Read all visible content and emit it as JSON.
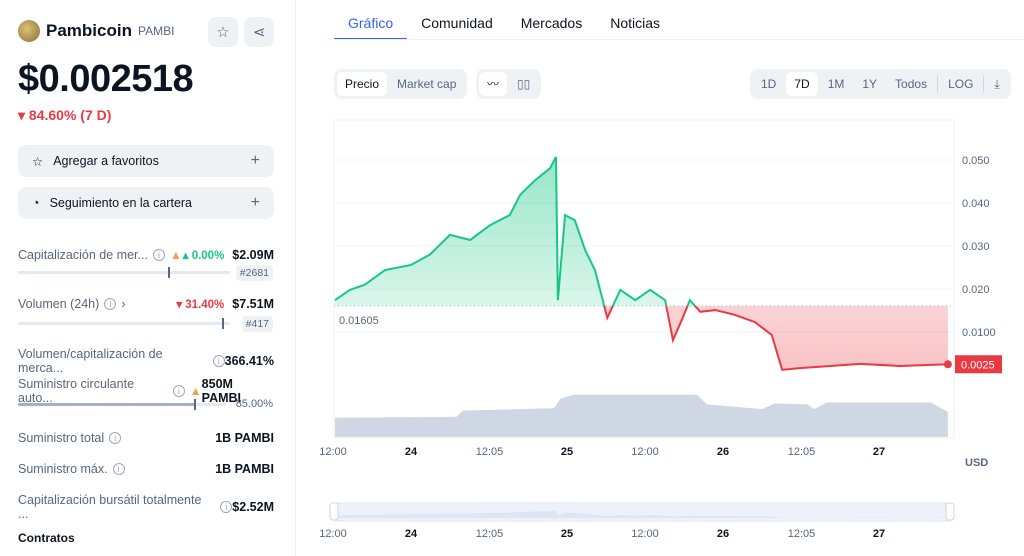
{
  "coin": {
    "name": "Pambicoin",
    "symbol": "PAMBI",
    "price": "$0.002518",
    "change": "84.60% (7 D)"
  },
  "actions": {
    "favorites": "Agregar a favoritos",
    "portfolio": "Seguimiento en la cartera"
  },
  "stats": {
    "market_cap": {
      "label": "Capitalización de mer...",
      "change": "0.00%",
      "value": "$2.09M",
      "rank": "#2681",
      "level": 0.75
    },
    "volume": {
      "label": "Volumen (24h)",
      "change": "31.40%",
      "value": "$7.51M",
      "rank": "#417",
      "level": 0.97
    },
    "vol_mcap": {
      "label": "Volumen/capitalización de merca...",
      "value": "366.41%"
    },
    "circ": {
      "label": "Suministro circulante auto...",
      "value": "850M PAMBI",
      "pct": "85.00%",
      "level": 0.85
    },
    "total": {
      "label": "Suministro total",
      "value": "1B PAMBI"
    },
    "max": {
      "label": "Suministro máx.",
      "value": "1B PAMBI"
    },
    "fdv": {
      "label": "Capitalización bursátil totalmente ...",
      "value": "$2.52M"
    },
    "contracts": "Contratos"
  },
  "tabs": [
    "Gráfico",
    "Comunidad",
    "Mercados",
    "Noticias"
  ],
  "toolbar": {
    "metric": [
      "Precio",
      "Market cap"
    ],
    "ranges": [
      "1D",
      "7D",
      "1M",
      "1Y",
      "Todos"
    ],
    "log": "LOG",
    "selected_range": "7D"
  },
  "colors": {
    "up": "#16c784",
    "down": "#ea3943",
    "accent": "#3861fb"
  },
  "chart_data": {
    "type": "line",
    "currency": "USD",
    "baseline": 0.01605,
    "baseline_label": "0.01605",
    "last_label": "0.0025",
    "ylim": [
      0,
      0.057
    ],
    "yticks": [
      "0.050",
      "0.040",
      "0.030",
      "0.020",
      "0.0100"
    ],
    "ytick_values": [
      0.05,
      0.04,
      0.03,
      0.02,
      0.01
    ],
    "xticks": [
      "12:00",
      "24",
      "12:05",
      "25",
      "12:00",
      "26",
      "12:05",
      "27"
    ],
    "xtick_times": [
      "23 12:00",
      "24 00:00",
      "24 12:05",
      "25 00:00",
      "25 12:00",
      "26 00:00",
      "26 12:05",
      "27 00:00"
    ],
    "price": [
      [
        "23 12:18",
        0.0174
      ],
      [
        "23 14:36",
        0.0198
      ],
      [
        "23 16:54",
        0.021
      ],
      [
        "23 20:00",
        0.0244
      ],
      [
        "24 00:00",
        0.0256
      ],
      [
        "24 02:54",
        0.028
      ],
      [
        "24 06:00",
        0.0326
      ],
      [
        "24 09:06",
        0.0314
      ],
      [
        "24 12:12",
        0.0349
      ],
      [
        "24 15:12",
        0.0372
      ],
      [
        "24 16:48",
        0.0419
      ],
      [
        "24 19:06",
        0.0453
      ],
      [
        "24 21:24",
        0.0481
      ],
      [
        "24 22:18",
        0.0507
      ],
      [
        "24 22:36",
        0.0174
      ],
      [
        "24 23:42",
        0.0372
      ],
      [
        "25 01:12",
        0.036
      ],
      [
        "25 02:48",
        0.029
      ],
      [
        "25 04:18",
        0.0244
      ],
      [
        "25 06:12",
        0.0133
      ],
      [
        "25 08:12",
        0.0198
      ],
      [
        "25 10:30",
        0.0174
      ],
      [
        "25 12:48",
        0.0198
      ],
      [
        "25 15:06",
        0.0174
      ],
      [
        "25 16:18",
        0.0081
      ],
      [
        "25 17:48",
        0.0133
      ],
      [
        "25 18:54",
        0.0174
      ],
      [
        "25 20:30",
        0.0147
      ],
      [
        "25 22:48",
        0.0151
      ],
      [
        "26 01:48",
        0.014
      ],
      [
        "26 04:54",
        0.0123
      ],
      [
        "26 07:30",
        0.0093
      ],
      [
        "26 09:06",
        0.0012
      ],
      [
        "26 11:48",
        0.0016
      ],
      [
        "26 16:30",
        0.0021
      ],
      [
        "26 21:06",
        0.0026
      ],
      [
        "27 03:12",
        0.0021
      ],
      [
        "27 10:36",
        0.0025
      ]
    ],
    "volume_relative": [
      [
        "23 12:18",
        0.4
      ],
      [
        "24 07:00",
        0.42
      ],
      [
        "24 08:00",
        0.55
      ],
      [
        "24 22:00",
        0.6
      ],
      [
        "24 23:00",
        0.8
      ],
      [
        "25 01:00",
        0.88
      ],
      [
        "25 20:00",
        0.88
      ],
      [
        "25 21:30",
        0.68
      ],
      [
        "26 06:00",
        0.58
      ],
      [
        "26 08:00",
        0.7
      ],
      [
        "26 13:00",
        0.68
      ],
      [
        "26 14:00",
        0.58
      ],
      [
        "26 16:00",
        0.72
      ],
      [
        "27 08:00",
        0.72
      ],
      [
        "27 10:36",
        0.52
      ]
    ]
  }
}
